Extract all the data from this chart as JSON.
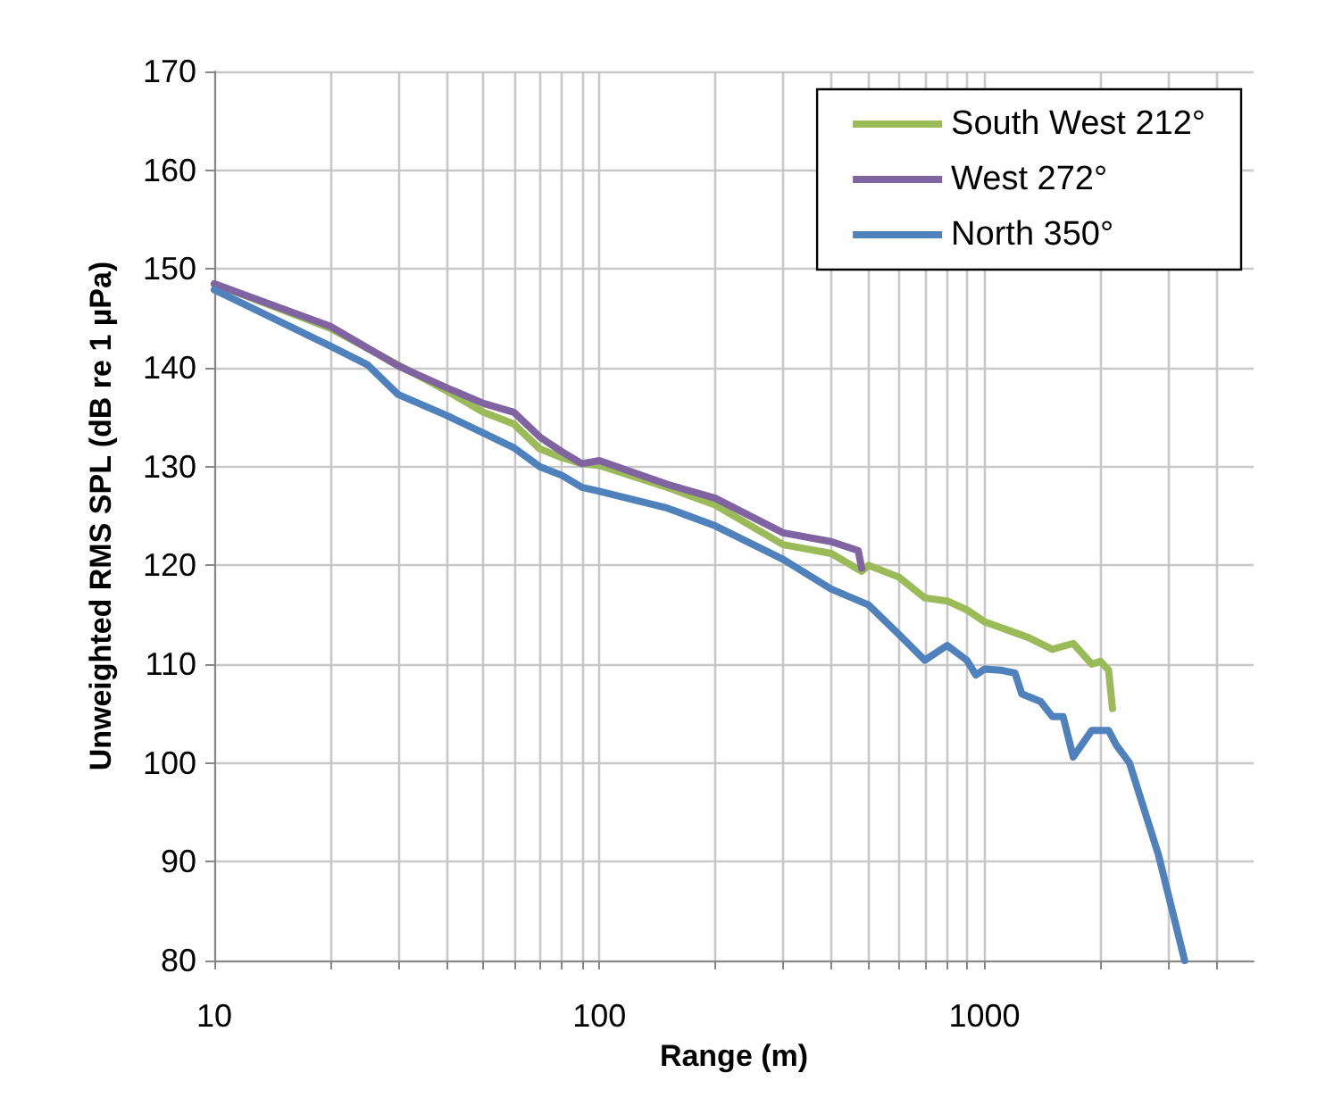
{
  "chart_data": {
    "type": "line",
    "xlabel": "Range (m)",
    "ylabel": "Unweighted RMS SPL (dB re 1 µPa)",
    "log": "x",
    "grid": true,
    "legend": "top right",
    "marker": "none",
    "line_style": "solid",
    "xlim": [
      10,
      5000
    ],
    "ylim": [
      80,
      170
    ],
    "xticks": [
      10,
      {
        "value": 20,
        "label": null
      },
      {
        "value": 30,
        "label": null
      },
      {
        "value": 40,
        "label": null
      },
      {
        "value": 50,
        "label": null
      },
      {
        "value": 60,
        "label": null
      },
      {
        "value": 70,
        "label": null
      },
      {
        "value": 80,
        "label": null
      },
      {
        "value": 90,
        "label": null
      },
      100,
      {
        "value": 200,
        "label": null
      },
      {
        "value": 300,
        "label": null
      },
      {
        "value": 400,
        "label": null
      },
      {
        "value": 500,
        "label": null
      },
      {
        "value": 600,
        "label": null
      },
      {
        "value": 700,
        "label": null
      },
      {
        "value": 800,
        "label": null
      },
      {
        "value": 900,
        "label": null
      },
      1000,
      {
        "value": 2000,
        "label": null
      },
      {
        "value": 3000,
        "label": null
      },
      {
        "value": 4000,
        "label": null
      }
    ],
    "yticks": [
      80,
      90,
      100,
      110,
      120,
      130,
      140,
      150,
      160,
      170
    ],
    "series": [
      {
        "name": "South West 212°",
        "color": "#9bbb59",
        "x": [
          10,
          20,
          30,
          40,
          50,
          60,
          70,
          80,
          90,
          100,
          150,
          200,
          300,
          400,
          480,
          500,
          600,
          700,
          800,
          900,
          1000,
          1300,
          1500,
          1700,
          1900,
          2000,
          2100,
          2150
        ],
        "values": [
          148.5,
          144,
          140.3,
          137.7,
          135.5,
          134.3,
          131.8,
          130.9,
          130.3,
          130.1,
          127.9,
          126.1,
          122.1,
          121.2,
          119.4,
          120,
          118.8,
          116.7,
          116.4,
          115.5,
          114.3,
          112.7,
          111.5,
          112.1,
          110,
          110.3,
          109.4,
          105.5
        ]
      },
      {
        "name": "West 272°",
        "color": "#8064a2",
        "x": [
          10,
          20,
          30,
          40,
          50,
          60,
          70,
          80,
          90,
          100,
          150,
          200,
          300,
          400,
          470,
          480
        ],
        "values": [
          148.5,
          144.2,
          140.2,
          138,
          136.4,
          135.5,
          133,
          131.5,
          130.3,
          130.6,
          128.2,
          126.8,
          123.3,
          122.4,
          121.5,
          119.7
        ]
      },
      {
        "name": "North 350°",
        "color": "#4f81bd",
        "x": [
          10,
          20,
          25,
          30,
          40,
          50,
          60,
          70,
          80,
          90,
          100,
          150,
          200,
          300,
          400,
          500,
          600,
          700,
          800,
          900,
          950,
          1000,
          1100,
          1200,
          1250,
          1400,
          1500,
          1600,
          1700,
          1900,
          2100,
          2200,
          2380,
          2830,
          3310
        ],
        "values": [
          147.9,
          142.2,
          140.3,
          137.3,
          135.2,
          133.4,
          131.9,
          130,
          129.1,
          127.9,
          127.5,
          125.8,
          124,
          120.6,
          117.6,
          116,
          113,
          110.4,
          111.9,
          110.4,
          108.9,
          109.5,
          109.4,
          109.1,
          107,
          106.2,
          104.7,
          104.7,
          100.6,
          103.3,
          103.3,
          101.8,
          100,
          90.7,
          80
        ]
      }
    ]
  }
}
